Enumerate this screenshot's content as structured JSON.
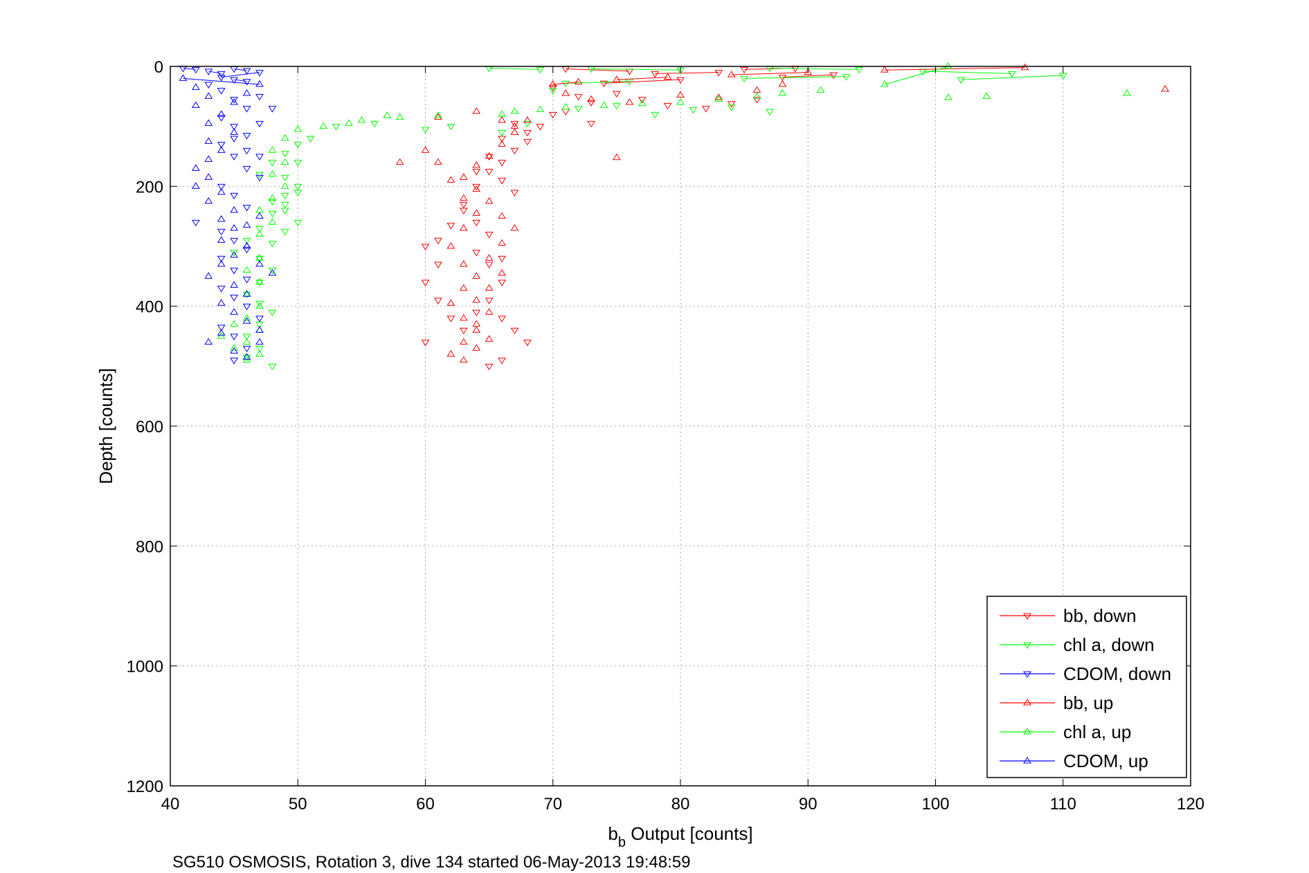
{
  "chart_data": {
    "type": "scatter",
    "title": "",
    "xlabel": {
      "base": "b",
      "sub": "b",
      "rest": " Output [counts]"
    },
    "ylabel": "Depth [counts]",
    "caption": "SG510 OSMOSIS, Rotation 3, dive 134 started 06-May-2013 19:48:59",
    "xlim": [
      40,
      120
    ],
    "ylim": [
      0,
      1200
    ],
    "y_reversed": true,
    "grid": true,
    "legend_position": "bottom-right",
    "x_ticks": [
      "40",
      "50",
      "60",
      "70",
      "80",
      "90",
      "100",
      "110",
      "120"
    ],
    "y_ticks": [
      "0",
      "200",
      "400",
      "600",
      "800",
      "1000",
      "1200"
    ],
    "colors": {
      "bb": "#ff0000",
      "chl": "#00ff00",
      "cdom": "#0000ff",
      "grid": "#b0b0b0"
    },
    "series": [
      {
        "name": "bb, down",
        "color": "#ff0000",
        "marker": "triangle-down",
        "points": [
          [
            71,
            4
          ],
          [
            76,
            8
          ],
          [
            85,
            5
          ],
          [
            89,
            3
          ],
          [
            78,
            12
          ],
          [
            83,
            10
          ],
          [
            92,
            14
          ],
          [
            88,
            18
          ],
          [
            80,
            22
          ],
          [
            74,
            28
          ],
          [
            70,
            35
          ],
          [
            72,
            50
          ],
          [
            73,
            60
          ],
          [
            75,
            45
          ],
          [
            77,
            55
          ],
          [
            79,
            65
          ],
          [
            82,
            70
          ],
          [
            84,
            62
          ],
          [
            86,
            55
          ],
          [
            71,
            75
          ],
          [
            73,
            95
          ],
          [
            68,
            110
          ],
          [
            67,
            95
          ],
          [
            66,
            120
          ],
          [
            65,
            150
          ],
          [
            64,
            175
          ],
          [
            66,
            190
          ],
          [
            67,
            210
          ],
          [
            63,
            240
          ],
          [
            62,
            265
          ],
          [
            61,
            290
          ],
          [
            60,
            300
          ],
          [
            61,
            330
          ],
          [
            60,
            360
          ],
          [
            61,
            390
          ],
          [
            62,
            420
          ],
          [
            60,
            460
          ],
          [
            63,
            440
          ],
          [
            64,
            410
          ],
          [
            65,
            390
          ],
          [
            66,
            360
          ],
          [
            65,
            330
          ],
          [
            64,
            310
          ],
          [
            66,
            320
          ],
          [
            65,
            280
          ],
          [
            64,
            260
          ],
          [
            63,
            230
          ],
          [
            64,
            200
          ],
          [
            65,
            175
          ],
          [
            66,
            160
          ],
          [
            67,
            140
          ],
          [
            68,
            125
          ],
          [
            69,
            100
          ],
          [
            70,
            80
          ],
          [
            66,
            420
          ],
          [
            67,
            440
          ],
          [
            68,
            460
          ],
          [
            65,
            500
          ],
          [
            66,
            490
          ]
        ]
      },
      {
        "name": "chl a, down",
        "color": "#00ff00",
        "marker": "triangle-down",
        "points": [
          [
            65,
            3
          ],
          [
            69,
            5
          ],
          [
            73,
            4
          ],
          [
            80,
            6
          ],
          [
            87,
            3
          ],
          [
            94,
            5
          ],
          [
            99,
            8
          ],
          [
            106,
            12
          ],
          [
            110,
            15
          ],
          [
            102,
            22
          ],
          [
            93,
            17
          ],
          [
            85,
            20
          ],
          [
            76,
            25
          ],
          [
            71,
            28
          ],
          [
            70,
            40
          ],
          [
            72,
            70
          ],
          [
            75,
            65
          ],
          [
            78,
            80
          ],
          [
            81,
            72
          ],
          [
            84,
            68
          ],
          [
            87,
            75
          ],
          [
            68,
            95
          ],
          [
            66,
            110
          ],
          [
            62,
            100
          ],
          [
            60,
            105
          ],
          [
            56,
            95
          ],
          [
            53,
            100
          ],
          [
            51,
            120
          ],
          [
            50,
            130
          ],
          [
            49,
            145
          ],
          [
            50,
            160
          ],
          [
            49,
            185
          ],
          [
            50,
            200
          ],
          [
            49,
            215
          ],
          [
            48,
            225
          ],
          [
            49,
            240
          ],
          [
            50,
            260
          ],
          [
            49,
            275
          ],
          [
            48,
            295
          ],
          [
            47,
            320
          ],
          [
            48,
            340
          ],
          [
            47,
            360
          ],
          [
            46,
            380
          ],
          [
            47,
            395
          ],
          [
            48,
            410
          ],
          [
            47,
            430
          ],
          [
            46,
            450
          ],
          [
            47,
            470
          ],
          [
            48,
            500
          ],
          [
            46,
            485
          ],
          [
            45,
            310
          ],
          [
            46,
            290
          ],
          [
            47,
            270
          ],
          [
            48,
            245
          ],
          [
            49,
            230
          ],
          [
            50,
            210
          ],
          [
            47,
            180
          ],
          [
            48,
            160
          ]
        ]
      },
      {
        "name": "CDOM, down",
        "color": "#0000ff",
        "marker": "triangle-down",
        "points": [
          [
            41,
            3
          ],
          [
            42,
            5
          ],
          [
            43,
            8
          ],
          [
            44,
            12
          ],
          [
            45,
            4
          ],
          [
            46,
            7
          ],
          [
            47,
            10
          ],
          [
            44,
            18
          ],
          [
            45,
            22
          ],
          [
            46,
            25
          ],
          [
            43,
            30
          ],
          [
            44,
            40
          ],
          [
            45,
            55
          ],
          [
            46,
            70
          ],
          [
            44,
            85
          ],
          [
            45,
            100
          ],
          [
            46,
            115
          ],
          [
            44,
            130
          ],
          [
            45,
            150
          ],
          [
            46,
            170
          ],
          [
            47,
            185
          ],
          [
            44,
            200
          ],
          [
            45,
            215
          ],
          [
            46,
            235
          ],
          [
            42,
            260
          ],
          [
            44,
            275
          ],
          [
            45,
            290
          ],
          [
            46,
            305
          ],
          [
            44,
            320
          ],
          [
            45,
            340
          ],
          [
            46,
            355
          ],
          [
            44,
            370
          ],
          [
            45,
            385
          ],
          [
            46,
            400
          ],
          [
            47,
            420
          ],
          [
            44,
            435
          ],
          [
            45,
            450
          ],
          [
            46,
            470
          ],
          [
            45,
            490
          ],
          [
            47,
            150
          ],
          [
            46,
            140
          ],
          [
            45,
            120
          ],
          [
            47,
            95
          ],
          [
            48,
            70
          ],
          [
            47,
            50
          ]
        ]
      },
      {
        "name": "bb, up",
        "color": "#ff0000",
        "marker": "triangle-up",
        "points": [
          [
            118,
            38
          ],
          [
            107,
            2
          ],
          [
            96,
            6
          ],
          [
            90,
            10
          ],
          [
            84,
            14
          ],
          [
            79,
            18
          ],
          [
            75,
            22
          ],
          [
            72,
            26
          ],
          [
            70,
            30
          ],
          [
            71,
            45
          ],
          [
            73,
            55
          ],
          [
            76,
            60
          ],
          [
            80,
            48
          ],
          [
            83,
            52
          ],
          [
            86,
            40
          ],
          [
            88,
            30
          ],
          [
            75,
            152
          ],
          [
            58,
            160
          ],
          [
            60,
            140
          ],
          [
            61,
            160
          ],
          [
            62,
            190
          ],
          [
            63,
            220
          ],
          [
            64,
            245
          ],
          [
            63,
            270
          ],
          [
            62,
            300
          ],
          [
            63,
            330
          ],
          [
            64,
            350
          ],
          [
            63,
            370
          ],
          [
            62,
            395
          ],
          [
            63,
            420
          ],
          [
            64,
            440
          ],
          [
            63,
            460
          ],
          [
            62,
            480
          ],
          [
            63,
            490
          ],
          [
            64,
            470
          ],
          [
            65,
            455
          ],
          [
            64,
            430
          ],
          [
            65,
            410
          ],
          [
            64,
            390
          ],
          [
            65,
            370
          ],
          [
            66,
            345
          ],
          [
            65,
            320
          ],
          [
            66,
            295
          ],
          [
            67,
            270
          ],
          [
            66,
            250
          ],
          [
            65,
            225
          ],
          [
            64,
            205
          ],
          [
            63,
            185
          ],
          [
            64,
            165
          ],
          [
            65,
            150
          ],
          [
            66,
            130
          ],
          [
            67,
            110
          ],
          [
            68,
            90
          ],
          [
            64,
            75
          ],
          [
            61,
            85
          ],
          [
            66,
            90
          ],
          [
            67,
            100
          ]
        ]
      },
      {
        "name": "chl a, up",
        "color": "#00ff00",
        "marker": "triangle-up",
        "points": [
          [
            115,
            45
          ],
          [
            104,
            50
          ],
          [
            101,
            52
          ],
          [
            101,
            0
          ],
          [
            96,
            30
          ],
          [
            91,
            40
          ],
          [
            88,
            45
          ],
          [
            86,
            50
          ],
          [
            83,
            55
          ],
          [
            80,
            60
          ],
          [
            77,
            62
          ],
          [
            74,
            65
          ],
          [
            71,
            68
          ],
          [
            69,
            72
          ],
          [
            67,
            75
          ],
          [
            66,
            80
          ],
          [
            61,
            82
          ],
          [
            58,
            85
          ],
          [
            57,
            82
          ],
          [
            55,
            90
          ],
          [
            54,
            95
          ],
          [
            52,
            100
          ],
          [
            50,
            105
          ],
          [
            49,
            120
          ],
          [
            48,
            140
          ],
          [
            49,
            160
          ],
          [
            48,
            180
          ],
          [
            49,
            200
          ],
          [
            48,
            220
          ],
          [
            47,
            240
          ],
          [
            48,
            260
          ],
          [
            47,
            280
          ],
          [
            46,
            300
          ],
          [
            47,
            320
          ],
          [
            46,
            340
          ],
          [
            47,
            360
          ],
          [
            46,
            380
          ],
          [
            47,
            400
          ],
          [
            46,
            420
          ],
          [
            47,
            440
          ],
          [
            46,
            460
          ],
          [
            47,
            480
          ],
          [
            46,
            490
          ],
          [
            45,
            470
          ],
          [
            44,
            450
          ],
          [
            45,
            430
          ]
        ]
      },
      {
        "name": "CDOM, up",
        "color": "#0000ff",
        "marker": "triangle-up",
        "points": [
          [
            41,
            20
          ],
          [
            42,
            35
          ],
          [
            43,
            50
          ],
          [
            42,
            65
          ],
          [
            44,
            80
          ],
          [
            43,
            95
          ],
          [
            45,
            110
          ],
          [
            43,
            125
          ],
          [
            44,
            140
          ],
          [
            43,
            155
          ],
          [
            42,
            170
          ],
          [
            43,
            185
          ],
          [
            42,
            200
          ],
          [
            44,
            210
          ],
          [
            43,
            225
          ],
          [
            45,
            240
          ],
          [
            44,
            255
          ],
          [
            45,
            270
          ],
          [
            44,
            290
          ],
          [
            46,
            300
          ],
          [
            45,
            315
          ],
          [
            44,
            330
          ],
          [
            43,
            350
          ],
          [
            45,
            365
          ],
          [
            46,
            380
          ],
          [
            44,
            395
          ],
          [
            45,
            410
          ],
          [
            46,
            425
          ],
          [
            44,
            445
          ],
          [
            43,
            460
          ],
          [
            45,
            475
          ],
          [
            46,
            485
          ],
          [
            47,
            460
          ],
          [
            47,
            440
          ],
          [
            46,
            300
          ],
          [
            47,
            330
          ],
          [
            48,
            345
          ],
          [
            46,
            265
          ],
          [
            47,
            250
          ],
          [
            45,
            60
          ],
          [
            46,
            45
          ],
          [
            47,
            30
          ]
        ]
      }
    ]
  }
}
